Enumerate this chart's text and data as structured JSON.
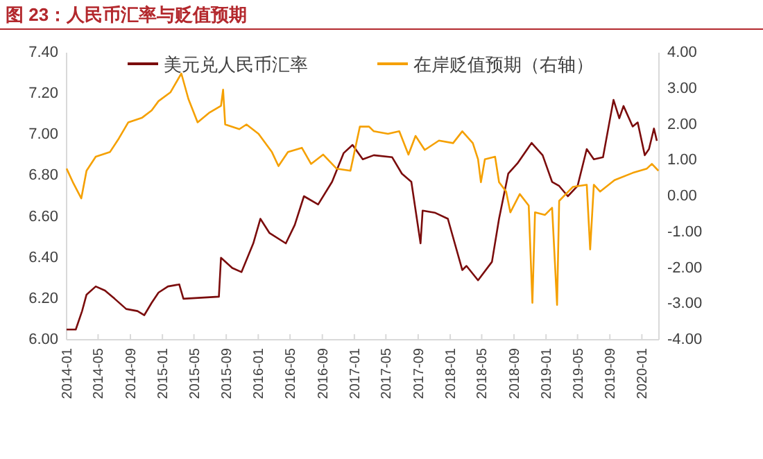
{
  "chart_data": {
    "type": "line",
    "title": "图 23：人民币汇率与贬值预期",
    "legend": "top",
    "line_style": "solid",
    "marker": "none",
    "grid": false,
    "xlim": [
      "2014-01-01",
      "2020-03-06"
    ],
    "xticks": [
      {
        "value": "2014-01-01",
        "label": "2014-01"
      },
      {
        "value": "2014-05-01",
        "label": "2014-05"
      },
      {
        "value": "2014-09-01",
        "label": "2014-09"
      },
      {
        "value": "2015-01-01",
        "label": "2015-01"
      },
      {
        "value": "2015-05-01",
        "label": "2015-05"
      },
      {
        "value": "2015-09-01",
        "label": "2015-09"
      },
      {
        "value": "2016-01-01",
        "label": "2016-01"
      },
      {
        "value": "2016-05-01",
        "label": "2016-05"
      },
      {
        "value": "2016-09-01",
        "label": "2016-09"
      },
      {
        "value": "2017-01-01",
        "label": "2017-01"
      },
      {
        "value": "2017-05-01",
        "label": "2017-05"
      },
      {
        "value": "2017-09-01",
        "label": "2017-09"
      },
      {
        "value": "2018-01-01",
        "label": "2018-01"
      },
      {
        "value": "2018-05-01",
        "label": "2018-05"
      },
      {
        "value": "2018-09-01",
        "label": "2018-09"
      },
      {
        "value": "2019-01-01",
        "label": "2019-01"
      },
      {
        "value": "2019-05-01",
        "label": "2019-05"
      },
      {
        "value": "2019-09-01",
        "label": "2019-09"
      },
      {
        "value": "2020-01-01",
        "label": "2020-01"
      }
    ],
    "ylim": [
      6.0,
      7.4
    ],
    "yticks": [
      {
        "value": 6.0,
        "label": "6.00"
      },
      {
        "value": 6.2,
        "label": "6.20"
      },
      {
        "value": 6.4,
        "label": "6.40"
      },
      {
        "value": 6.6,
        "label": "6.60"
      },
      {
        "value": 6.8,
        "label": "6.80"
      },
      {
        "value": 7.0,
        "label": "7.00"
      },
      {
        "value": 7.2,
        "label": "7.20"
      },
      {
        "value": 7.4,
        "label": "7.40"
      }
    ],
    "y2lim": [
      -4,
      4
    ],
    "y2ticks": [
      {
        "value": -4,
        "label": "-4.00"
      },
      {
        "value": -3,
        "label": "-3.00"
      },
      {
        "value": -2,
        "label": "-2.00"
      },
      {
        "value": -1,
        "label": "-1.00"
      },
      {
        "value": 0,
        "label": "0.00"
      },
      {
        "value": 1,
        "label": "1.00"
      },
      {
        "value": 2,
        "label": "2.00"
      },
      {
        "value": 3,
        "label": "3.00"
      },
      {
        "value": 4,
        "label": "4.00"
      }
    ],
    "series": [
      {
        "name": "美元兑人民币汇率",
        "color": "#7b0c0c",
        "x": [
          "2014-01-01",
          "2014-02-05",
          "2014-03-01",
          "2014-03-18",
          "2014-04-22",
          "2014-05-27",
          "2014-07-03",
          "2014-08-16",
          "2014-09-28",
          "2014-10-24",
          "2014-11-21",
          "2014-12-17",
          "2015-01-22",
          "2015-03-06",
          "2015-03-22",
          "2015-08-04",
          "2015-08-12",
          "2015-09-24",
          "2015-10-29",
          "2015-12-13",
          "2016-01-09",
          "2016-02-13",
          "2016-04-15",
          "2016-05-19",
          "2016-06-23",
          "2016-08-16",
          "2016-10-08",
          "2016-11-21",
          "2016-12-25",
          "2017-02-02",
          "2017-03-16",
          "2017-05-25",
          "2017-07-01",
          "2017-08-06",
          "2017-09-10",
          "2017-09-18",
          "2017-11-03",
          "2017-12-23",
          "2018-02-16",
          "2018-03-04",
          "2018-04-17",
          "2018-06-09",
          "2018-07-06",
          "2018-08-10",
          "2018-09-14",
          "2018-11-07",
          "2018-12-19",
          "2019-01-24",
          "2019-02-20",
          "2019-03-25",
          "2019-05-01",
          "2019-06-05",
          "2019-07-02",
          "2019-08-06",
          "2019-09-02",
          "2019-09-15",
          "2019-10-07",
          "2019-10-23",
          "2019-11-27",
          "2019-12-16",
          "2020-01-12",
          "2020-01-28",
          "2020-02-16",
          "2020-02-27"
        ],
        "values": [
          6.05,
          6.05,
          6.14,
          6.22,
          6.26,
          6.24,
          6.2,
          6.15,
          6.14,
          6.12,
          6.18,
          6.23,
          6.26,
          6.27,
          6.2,
          6.21,
          6.4,
          6.35,
          6.33,
          6.47,
          6.59,
          6.52,
          6.47,
          6.56,
          6.7,
          6.66,
          6.77,
          6.91,
          6.95,
          6.88,
          6.9,
          6.89,
          6.81,
          6.77,
          6.47,
          6.63,
          6.62,
          6.59,
          6.34,
          6.36,
          6.29,
          6.38,
          6.59,
          6.81,
          6.86,
          6.96,
          6.9,
          6.77,
          6.75,
          6.7,
          6.75,
          6.93,
          6.88,
          6.89,
          7.08,
          7.17,
          7.08,
          7.14,
          7.04,
          7.06,
          6.9,
          6.93,
          7.03,
          6.97
        ]
      },
      {
        "name": "在岸贬值预期（右轴）",
        "color": "#f5a000",
        "axis": "y2",
        "x": [
          "2014-01-01",
          "2014-01-25",
          "2014-02-26",
          "2014-03-18",
          "2014-04-22",
          "2014-06-15",
          "2014-07-19",
          "2014-08-24",
          "2014-10-16",
          "2014-11-21",
          "2014-12-17",
          "2015-02-01",
          "2015-03-14",
          "2015-04-10",
          "2015-05-15",
          "2015-06-27",
          "2015-08-12",
          "2015-08-20",
          "2015-08-28",
          "2015-10-21",
          "2015-11-17",
          "2016-01-02",
          "2016-02-22",
          "2016-03-18",
          "2016-04-23",
          "2016-06-15",
          "2016-07-20",
          "2016-09-04",
          "2016-10-25",
          "2016-12-17",
          "2017-01-22",
          "2017-02-26",
          "2017-03-16",
          "2017-05-09",
          "2017-06-21",
          "2017-07-26",
          "2017-08-22",
          "2017-09-26",
          "2017-11-19",
          "2018-01-12",
          "2018-02-16",
          "2018-03-28",
          "2018-04-17",
          "2018-04-28",
          "2018-05-13",
          "2018-06-21",
          "2018-07-06",
          "2018-08-02",
          "2018-08-18",
          "2018-09-23",
          "2018-10-27",
          "2018-11-10",
          "2018-11-20",
          "2018-12-28",
          "2019-01-24",
          "2019-02-12",
          "2019-02-20",
          "2019-04-13",
          "2019-06-05",
          "2019-06-18",
          "2019-07-02",
          "2019-07-26",
          "2019-09-19",
          "2019-11-27",
          "2020-01-20",
          "2020-02-08",
          "2020-03-04"
        ],
        "values": [
          0.77,
          0.39,
          -0.06,
          0.71,
          1.1,
          1.23,
          1.61,
          2.06,
          2.19,
          2.39,
          2.65,
          2.9,
          3.42,
          2.71,
          2.06,
          2.32,
          2.52,
          2.97,
          2.0,
          1.87,
          2.0,
          1.74,
          1.23,
          0.84,
          1.23,
          1.35,
          0.9,
          1.16,
          0.77,
          0.71,
          1.94,
          1.94,
          1.81,
          1.74,
          1.81,
          1.16,
          1.68,
          1.29,
          1.55,
          1.48,
          1.81,
          1.48,
          1.03,
          0.39,
          1.03,
          1.1,
          0.39,
          0.13,
          -0.45,
          0.06,
          -0.26,
          -2.97,
          -0.45,
          -0.52,
          -0.32,
          -3.03,
          -0.13,
          0.26,
          0.32,
          -1.48,
          0.32,
          0.13,
          0.45,
          0.65,
          0.77,
          0.9,
          0.71
        ]
      }
    ]
  }
}
